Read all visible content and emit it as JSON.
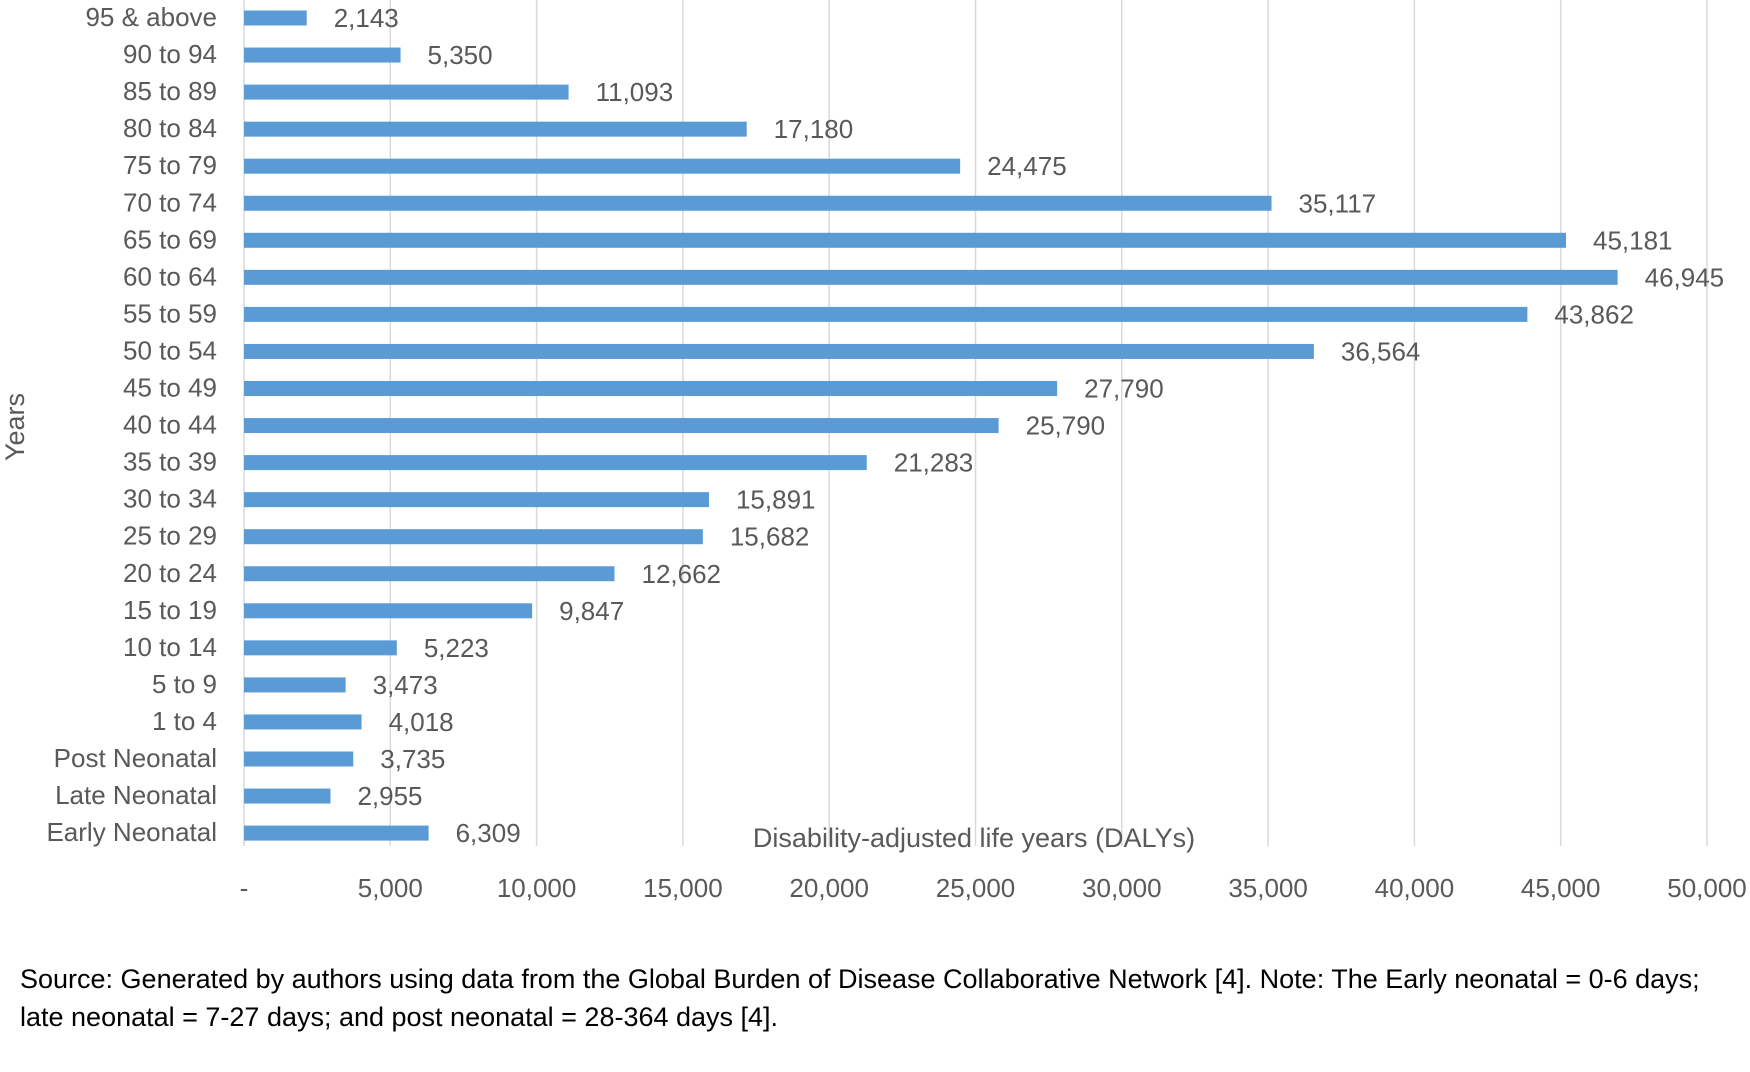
{
  "chart_data": {
    "type": "bar",
    "orientation": "horizontal",
    "categories": [
      "95 & above",
      "90 to 94",
      "85 to 89",
      "80 to 84",
      "75 to 79",
      "70 to 74",
      "65 to 69",
      "60 to 64",
      "55 to 59",
      "50 to 54",
      "45 to 49",
      "40 to 44",
      "35 to 39",
      "30 to 34",
      "25 to 29",
      "20 to 24",
      "15 to 19",
      "10 to 14",
      "5 to 9",
      "1 to 4",
      "Post Neonatal",
      "Late Neonatal",
      "Early Neonatal"
    ],
    "values": [
      2143,
      5350,
      11093,
      17180,
      24475,
      35117,
      45181,
      46945,
      43862,
      36564,
      27790,
      25790,
      21283,
      15891,
      15682,
      12662,
      9847,
      5223,
      3473,
      4018,
      3735,
      2955,
      6309
    ],
    "data_labels": [
      "2,143",
      "5,350",
      "11,093",
      "17,180",
      "24,475",
      "35,117",
      "45,181",
      "46,945",
      "43,862",
      "36,564",
      "27,790",
      "25,790",
      "21,283",
      "15,891",
      "15,682",
      "12,662",
      "9,847",
      "5,223",
      "3,473",
      "4,018",
      "3,735",
      "2,955",
      "6,309"
    ],
    "xlabel": "Disability-adjusted life years (DALYs)",
    "ylabel": "Years",
    "xlim": [
      0,
      50000
    ],
    "x_ticks": [
      0,
      5000,
      10000,
      15000,
      20000,
      25000,
      30000,
      35000,
      40000,
      45000,
      50000
    ],
    "x_tick_labels": [
      "-",
      "5,000",
      "10,000",
      "15,000",
      "20,000",
      "25,000",
      "30,000",
      "35,000",
      "40,000",
      "45,000",
      "50,000"
    ],
    "grid": true,
    "legend": "none",
    "bar_color": "#5B9BD5",
    "grid_color": "#D9D9D9"
  },
  "source_note": "Source: Generated by authors using data from the Global Burden of Disease Collaborative Network [4]. Note: The Early neonatal = 0-6 days; late neonatal = 7-27 days; and post neonatal = 28-364 days [4]."
}
